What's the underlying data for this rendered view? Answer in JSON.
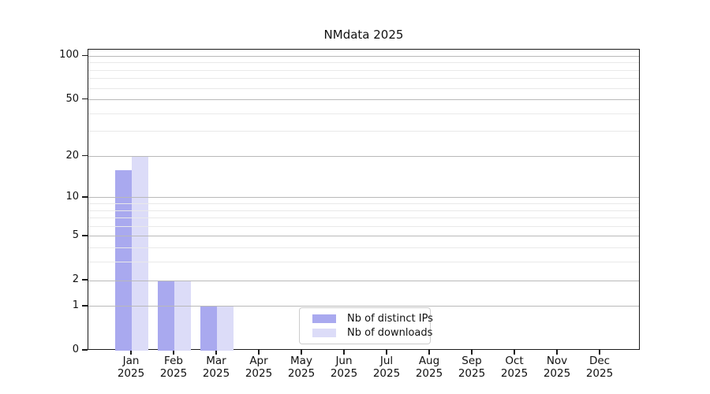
{
  "chart_data": {
    "type": "bar",
    "title": "NMdata 2025",
    "categories": [
      "Jan",
      "Feb",
      "Mar",
      "Apr",
      "May",
      "Jun",
      "Jul",
      "Aug",
      "Sep",
      "Oct",
      "Nov",
      "Dec"
    ],
    "category_year": "2025",
    "series": [
      {
        "name": "Nb of distinct IPs",
        "color": "#a9a9ef",
        "values": [
          16,
          2,
          1,
          0,
          0,
          0,
          0,
          0,
          0,
          0,
          0,
          0
        ]
      },
      {
        "name": "Nb of downloads",
        "color": "#dcdcf8",
        "values": [
          20,
          2,
          1,
          0,
          0,
          0,
          0,
          0,
          0,
          0,
          0,
          0
        ]
      }
    ],
    "yscale": "log1p",
    "yticks": [
      0,
      1,
      2,
      5,
      10,
      20,
      50,
      100
    ],
    "yticks_minor": [
      3,
      4,
      6,
      7,
      8,
      9,
      30,
      40,
      60,
      70,
      80,
      90
    ],
    "ylim": [
      0,
      111
    ],
    "grid": "both",
    "legend": {
      "position": "lower center",
      "entries": [
        "Nb of distinct IPs",
        "Nb of downloads"
      ]
    },
    "colors": {
      "grid_major": "#b9b9b9",
      "grid_minor": "#e9e9e9",
      "spine": "#1a1a1a",
      "text": "#111111",
      "background": "#ffffff"
    }
  }
}
